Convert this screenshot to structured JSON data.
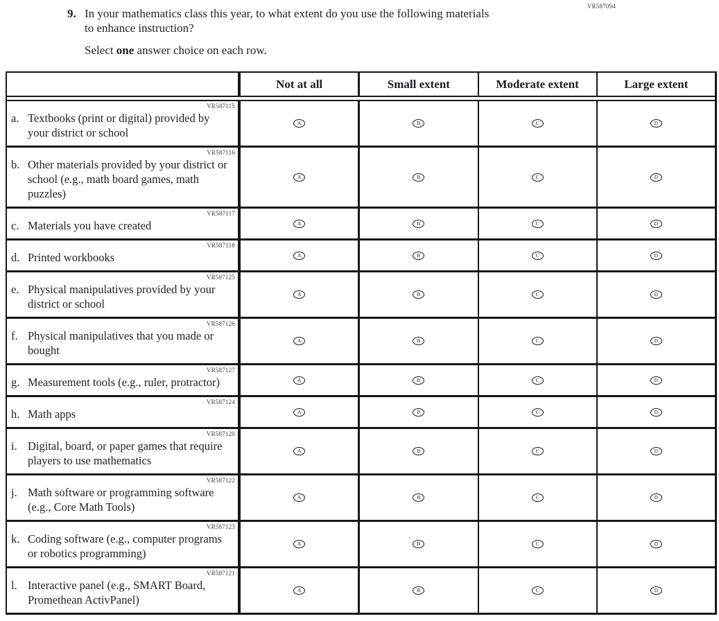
{
  "page": {
    "vr_code": "VR587094"
  },
  "question": {
    "number": "9.",
    "text_lines": [
      "In your mathematics class this year, to what extent do you use the following materials",
      "to enhance instruction?"
    ],
    "instruction": {
      "prefix": "Select ",
      "bold": "one",
      "suffix": " answer choice on each row."
    }
  },
  "table": {
    "columns": [
      "Not at all",
      "Small extent",
      "Moderate extent",
      "Large extent"
    ],
    "bubble_letters": [
      "A",
      "B",
      "C",
      "D"
    ],
    "rows": [
      {
        "letter": "a.",
        "label": "Textbooks (print or digital) provided by your district or school",
        "vr_code": "VR587115"
      },
      {
        "letter": "b.",
        "label": "Other materials provided by your district or school (e.g., math board games, math puzzles)",
        "vr_code": "VR587116"
      },
      {
        "letter": "c.",
        "label": "Materials you have created",
        "vr_code": "VR587117"
      },
      {
        "letter": "d.",
        "label": "Printed workbooks",
        "vr_code": "VR587118"
      },
      {
        "letter": "e.",
        "label": "Physical manipulatives provided by your district or school",
        "vr_code": "VR587125"
      },
      {
        "letter": "f.",
        "label": "Physical manipulatives that you made or bought",
        "vr_code": "VR587126"
      },
      {
        "letter": "g.",
        "label": "Measurement tools (e.g., ruler, protractor)",
        "vr_code": "VR587127"
      },
      {
        "letter": "h.",
        "label": "Math apps",
        "vr_code": "VR587124"
      },
      {
        "letter": "i.",
        "label": "Digital, board, or paper games that require players to use mathematics",
        "vr_code": "VR587120"
      },
      {
        "letter": "j.",
        "label": "Math software or programming software (e.g., Core Math Tools)",
        "vr_code": "VR587122"
      },
      {
        "letter": "k.",
        "label": "Coding software (e.g., computer programs or robotics programming)",
        "vr_code": "VR587123"
      },
      {
        "letter": "l.",
        "label": "Interactive panel (e.g., SMART Board, Promethean ActivPanel)",
        "vr_code": "VR587121"
      }
    ]
  },
  "colors": {
    "text": "#211f28",
    "border": "#17161c",
    "background": "#ffffff"
  }
}
